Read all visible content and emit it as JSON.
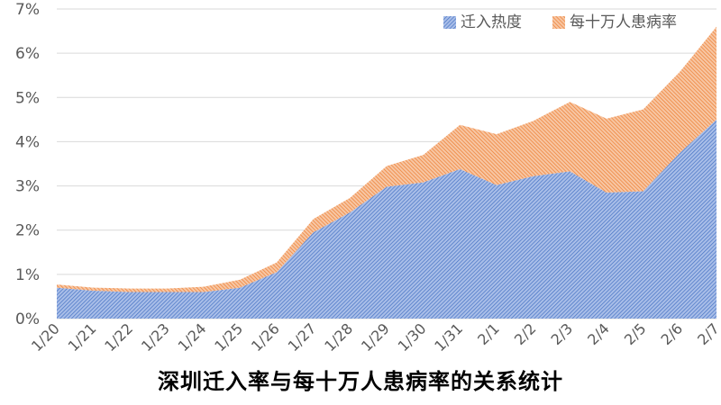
{
  "chart_data": {
    "type": "area",
    "stacked": true,
    "title": "深圳迁入率与每十万人患病率的关系统计",
    "categories": [
      "1/20",
      "1/21",
      "1/22",
      "1/23",
      "1/24",
      "1/25",
      "1/26",
      "1/27",
      "1/28",
      "1/29",
      "1/30",
      "1/31",
      "2/1",
      "2/2",
      "2/3",
      "2/4",
      "2/5",
      "2/6",
      "2/7"
    ],
    "series": [
      {
        "name": "迁入热度",
        "color": "#4472C4",
        "values": [
          0.7,
          0.63,
          0.6,
          0.6,
          0.6,
          0.7,
          1.05,
          1.95,
          2.4,
          2.98,
          3.08,
          3.38,
          3.02,
          3.22,
          3.33,
          2.85,
          2.88,
          3.75,
          4.5
        ]
      },
      {
        "name": "每十万人患病率",
        "color": "#ED7D31",
        "values": [
          0.07,
          0.07,
          0.08,
          0.08,
          0.12,
          0.18,
          0.22,
          0.3,
          0.33,
          0.47,
          0.62,
          1.0,
          1.15,
          1.25,
          1.57,
          1.67,
          1.85,
          1.83,
          2.1
        ]
      }
    ],
    "ylim": [
      0,
      7
    ],
    "yticks": [
      "0%",
      "1%",
      "2%",
      "3%",
      "4%",
      "5%",
      "6%",
      "7%"
    ],
    "y_format": "percent",
    "grid": true,
    "legend_position": "top-right",
    "xlabel": "",
    "ylabel": ""
  }
}
